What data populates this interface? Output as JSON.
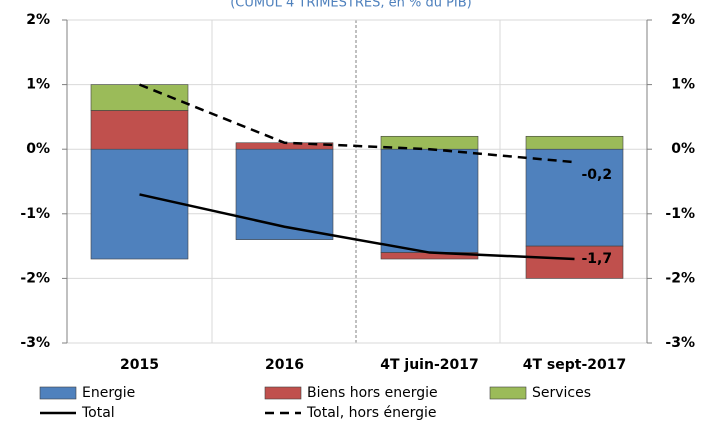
{
  "chart_data": {
    "type": "bar",
    "subtitle": "(CUMUL 4 TRIMESTRES, en % du PIB)",
    "categories": [
      "2015",
      "2016",
      "4T juin-2017",
      "4T sept-2017"
    ],
    "series": [
      {
        "name": "Energie",
        "type": "bar",
        "color": "#4f81bd",
        "values": [
          -1.7,
          -1.4,
          -1.6,
          -1.5
        ]
      },
      {
        "name": "Biens hors energie",
        "type": "bar",
        "color": "#c0504d",
        "values": [
          0.6,
          0.1,
          -0.1,
          -0.5
        ]
      },
      {
        "name": "Services",
        "type": "bar",
        "color": "#9bbb59",
        "values": [
          0.4,
          0,
          0.2,
          0.2
        ]
      },
      {
        "name": "Total",
        "type": "line",
        "color": "#000000",
        "dashed": false,
        "values": [
          -0.7,
          -1.2,
          -1.6,
          -1.7
        ],
        "value_labels": [
          null,
          null,
          null,
          "-1,7"
        ]
      },
      {
        "name": "Total, hors énergie",
        "type": "line",
        "color": "#000000",
        "dashed": true,
        "values": [
          1.0,
          0.1,
          0.0,
          -0.2
        ],
        "value_labels": [
          null,
          null,
          null,
          "-0,2"
        ]
      }
    ],
    "ylim": [
      -3,
      2
    ],
    "yticks": [
      {
        "value": -3,
        "label": "-3%"
      },
      {
        "value": -2,
        "label": "-2%"
      },
      {
        "value": -1,
        "label": "-1%"
      },
      {
        "value": 0,
        "label": "0%"
      },
      {
        "value": 1,
        "label": "1%"
      },
      {
        "value": 2,
        "label": "2%"
      }
    ],
    "y2lim": [
      -3,
      2
    ],
    "y2ticks": [
      {
        "value": -3,
        "label": "-3%"
      },
      {
        "value": -2,
        "label": "-2%"
      },
      {
        "value": -1,
        "label": "-1%"
      },
      {
        "value": 0,
        "label": "0%"
      },
      {
        "value": 1,
        "label": "1%"
      },
      {
        "value": 2,
        "label": "2%"
      }
    ],
    "grid": true
  }
}
